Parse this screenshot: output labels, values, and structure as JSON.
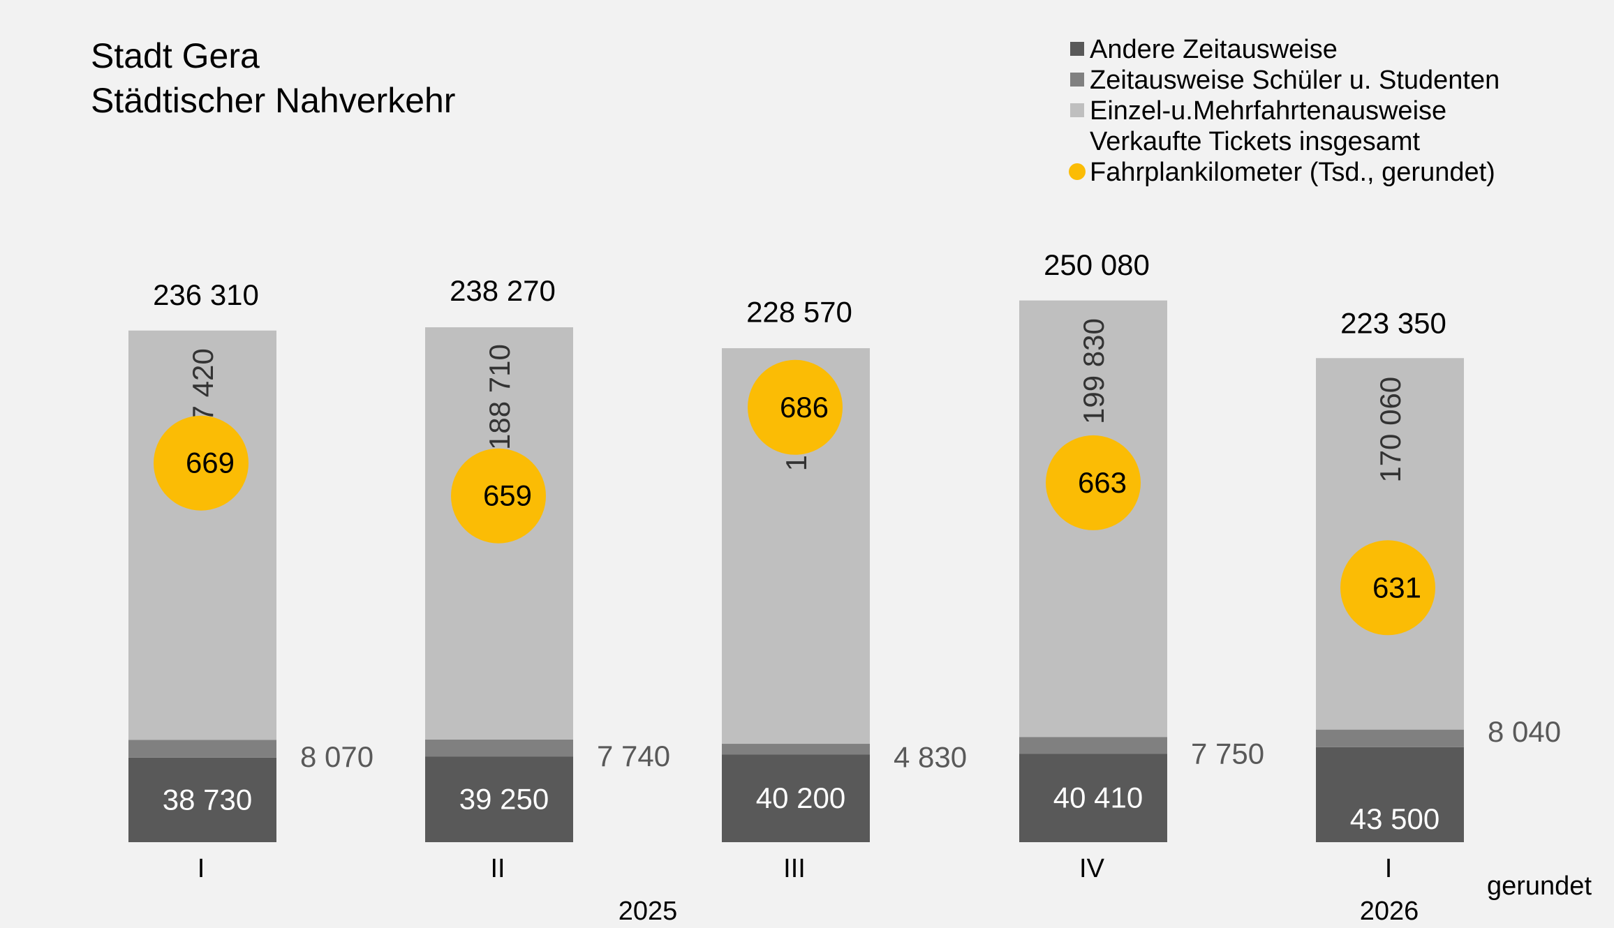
{
  "title_line1": "Stadt Gera",
  "title_line2": "Städtischer Nahverkehr",
  "note": "gerundet",
  "colors": {
    "background": "#f2f2f2",
    "andere": "#595959",
    "schueler": "#808080",
    "einzel": "#bfbfbf",
    "fahrplan": "#fbbc05",
    "text": "#000000",
    "label_gray": "#595959",
    "label_white": "#ffffff"
  },
  "legend": [
    {
      "label": "Andere Zeitausweise",
      "marker": "square",
      "color_key": "andere"
    },
    {
      "label": "Zeitausweise Schüler u. Studenten",
      "marker": "square",
      "color_key": "schueler"
    },
    {
      "label": "Einzel-u.Mehrfahrtenausweise",
      "marker": "square",
      "color_key": "einzel"
    },
    {
      "label": "Verkaufte Tickets insgesamt",
      "marker": "none",
      "color_key": "text"
    },
    {
      "label": "Fahrplankilometer (Tsd., gerundet)",
      "marker": "circle",
      "color_key": "fahrplan"
    }
  ],
  "chart_data": {
    "type": "bar",
    "stacked": true,
    "categories": [
      "I",
      "II",
      "III",
      "IV",
      "I"
    ],
    "year_groups": [
      {
        "label": "2025",
        "from": 0,
        "to": 3
      },
      {
        "label": "2026",
        "from": 4,
        "to": 4
      }
    ],
    "ylim": [
      0,
      260000
    ],
    "grid": false,
    "legend_position": "top-right",
    "series": [
      {
        "name": "Andere Zeitausweise",
        "values": [
          38730,
          39250,
          40200,
          40410,
          43500
        ],
        "labels": [
          "38 730",
          "39 250",
          "40 200",
          "40 410",
          "43 500"
        ]
      },
      {
        "name": "Zeitausweise Schüler u. Studenten",
        "values": [
          8070,
          7740,
          4830,
          7750,
          8040
        ],
        "labels": [
          "8 070",
          "7 740",
          "4 830",
          "7 750",
          "8 040"
        ]
      },
      {
        "name": "Einzel-u.Mehrfahrtenausweise",
        "values": [
          187420,
          188710,
          181100,
          199830,
          170060
        ],
        "labels": [
          "187 420",
          "188 710",
          "181 100",
          "199 830",
          "170 060"
        ]
      }
    ],
    "totals": {
      "name": "Verkaufte Tickets insgesamt",
      "values": [
        236310,
        238270,
        228570,
        250080,
        223350
      ],
      "labels": [
        "236 310",
        "238 270",
        "228 570",
        "250 080",
        "223 350"
      ]
    },
    "fahrplankilometer": {
      "name": "Fahrplankilometer (Tsd., gerundet)",
      "values": [
        669,
        659,
        686,
        663,
        631
      ],
      "labels": [
        "669",
        "659",
        "686",
        "663",
        "631"
      ],
      "ylim": [
        580,
        720
      ]
    }
  }
}
